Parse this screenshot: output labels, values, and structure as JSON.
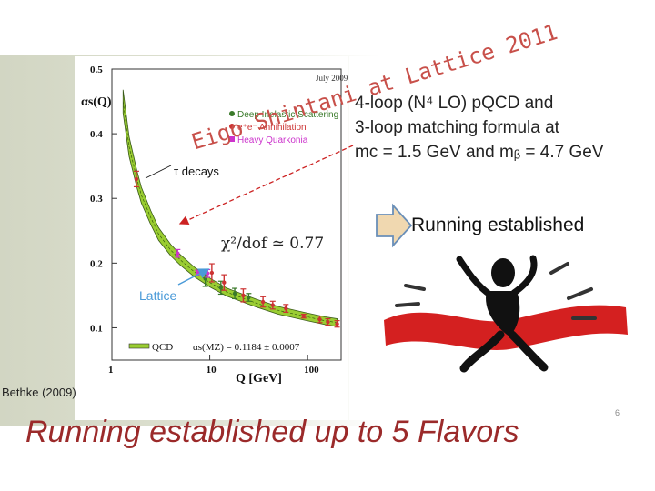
{
  "slide": {
    "handwritten_lines": [
      "Eigo Shintani at Lattice 2011"
    ],
    "footer": "Running established up to 5 Flavors",
    "page_number": "6",
    "citation": "Bethke (2009)",
    "description_lines": [
      "4-loop (N⁴ LO) pQCD and",
      "3-loop matching formula at",
      "mᴄ = 1.5 GeV and mᵦ = 4.7 GeV"
    ],
    "banner": "Running established",
    "colors": {
      "footer": "#9b2a2a",
      "handwriting": "#c8504a",
      "band": "#9acd32"
    }
  },
  "chart_data": {
    "type": "line",
    "title": "",
    "date_label": "July 2009",
    "ylabel": "αs(Q)",
    "xlabel": "Q [GeV]",
    "x_scale": "log",
    "xlim": [
      1,
      220
    ],
    "ylim": [
      0.05,
      0.5
    ],
    "x_ticks": [
      1,
      10,
      100
    ],
    "y_ticks": [
      0.1,
      0.2,
      0.3,
      0.4,
      0.5
    ],
    "legend": [
      {
        "label": "Deep Inelastic Scattering",
        "color": "#3a7a2a"
      },
      {
        "label": "e⁺e⁻ Annihilation",
        "color": "#cc3333"
      },
      {
        "label": "Heavy Quarkonia",
        "color": "#cc33cc"
      }
    ],
    "qcd_band": {
      "label": "QCD",
      "formula": "αs(MZ) = 0.1184 ± 0.0007",
      "x": [
        1.3,
        1.5,
        1.8,
        2,
        2.5,
        3,
        4,
        5,
        7,
        10,
        15,
        20,
        30,
        50,
        91.2,
        150,
        200
      ],
      "y": [
        0.45,
        0.38,
        0.33,
        0.305,
        0.27,
        0.245,
        0.22,
        0.205,
        0.186,
        0.17,
        0.155,
        0.148,
        0.138,
        0.127,
        0.118,
        0.111,
        0.108
      ]
    },
    "series": [
      {
        "name": "tau decays",
        "color": "#cc3333",
        "x": [
          1.78
        ],
        "y": [
          0.33
        ],
        "err": [
          0.012
        ]
      },
      {
        "name": "Lattice",
        "color": "#cc33cc",
        "x": [
          7.5
        ],
        "y": [
          0.185
        ],
        "err": [
          0.004
        ]
      },
      {
        "name": "Deep Inelastic Scattering",
        "color": "#3a7a2a",
        "x": [
          9,
          13,
          18,
          25
        ],
        "y": [
          0.176,
          0.162,
          0.153,
          0.147
        ],
        "err": [
          0.012,
          0.01,
          0.008,
          0.006
        ]
      },
      {
        "name": "e+e- Annihilation",
        "color": "#cc3333",
        "x": [
          10.5,
          14,
          22,
          35,
          44,
          60,
          91.2,
          133,
          161,
          200
        ],
        "y": [
          0.185,
          0.17,
          0.15,
          0.14,
          0.135,
          0.13,
          0.118,
          0.113,
          0.109,
          0.106
        ],
        "err": [
          0.014,
          0.012,
          0.01,
          0.008,
          0.006,
          0.006,
          0.003,
          0.005,
          0.005,
          0.005
        ]
      },
      {
        "name": "Heavy Quarkonia",
        "color": "#cc33cc",
        "x": [
          4.7,
          9.5
        ],
        "y": [
          0.215,
          0.184
        ],
        "err": [
          0.006,
          0.006
        ]
      }
    ],
    "annotations": [
      "τ decays",
      "χ²/dof ≃ 0.77",
      "Lattice"
    ]
  }
}
